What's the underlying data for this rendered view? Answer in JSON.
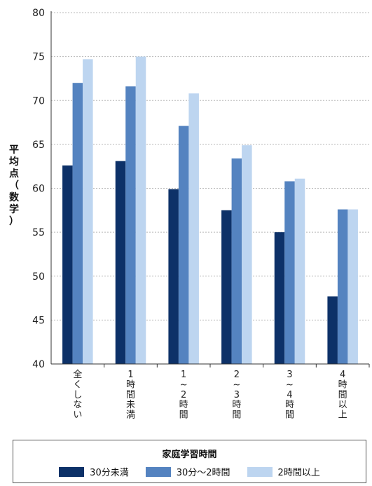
{
  "chart_data": {
    "type": "bar",
    "ylabel": "平均点（数学）",
    "ylim": [
      40,
      80
    ],
    "yticks": [
      40,
      45,
      50,
      55,
      60,
      65,
      70,
      75,
      80
    ],
    "grid": "horizontal-dashed",
    "categories": [
      "全くしない",
      "1時間未満",
      "1〜2時間",
      "2〜3時間",
      "3〜4時間",
      "4時間以上"
    ],
    "categories_vertical": [
      "全くしない",
      "1時間未満",
      "1~2時間",
      "2~3時間",
      "3~4時間",
      "4時間以上"
    ],
    "series": [
      {
        "name": "30分未満",
        "color": "#0d3168",
        "values": [
          62.6,
          63.1,
          59.9,
          57.5,
          55.0,
          47.7
        ]
      },
      {
        "name": "30分〜2時間",
        "color": "#5483c0",
        "values": [
          72.0,
          71.6,
          67.1,
          63.4,
          60.8,
          57.6
        ]
      },
      {
        "name": "2時間以上",
        "color": "#bdd5f0",
        "values": [
          74.7,
          75.0,
          70.8,
          64.9,
          61.1,
          57.6
        ]
      }
    ]
  },
  "legend": {
    "title": "家庭学習時間",
    "items": [
      "30分未満",
      "30分〜2時間",
      "2時間以上"
    ]
  }
}
